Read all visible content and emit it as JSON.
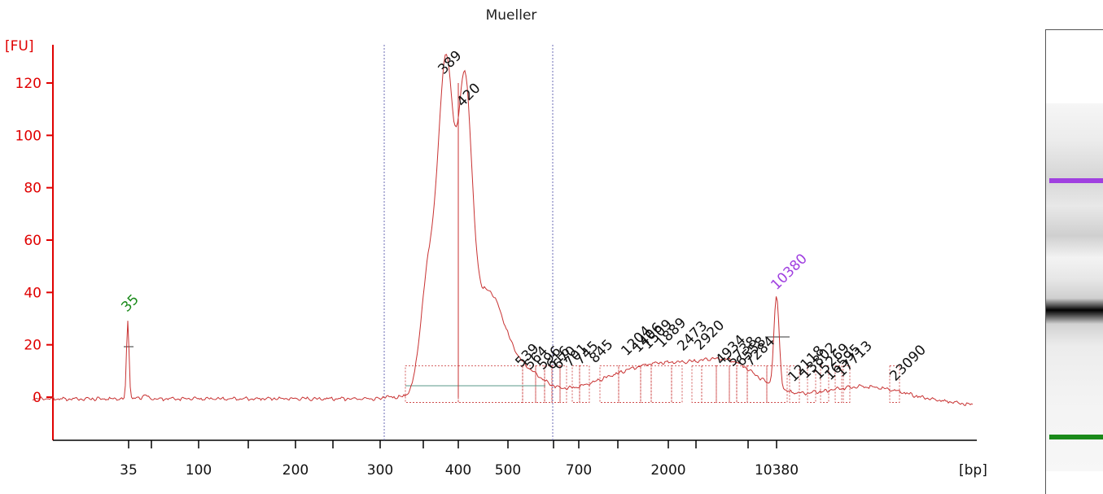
{
  "chart_data": {
    "type": "line",
    "title": "Mueller",
    "ylabel": "[FU]",
    "xlabel": "[bp]",
    "ylim": [
      -15,
      130
    ],
    "y_ticks": [
      0,
      20,
      40,
      60,
      80,
      100,
      120
    ],
    "x_ticks": [
      "35",
      "100",
      "200",
      "300",
      "400",
      "500",
      "700",
      "2000",
      "10380"
    ],
    "markers": [
      {
        "label": "35",
        "position_bp": 35,
        "height": 30,
        "color": "#1a8a1a"
      },
      {
        "label": "10380",
        "position_bp": 10380,
        "height": 38,
        "color": "#a040e0"
      }
    ],
    "peaks": [
      {
        "label": "389",
        "height": 122
      },
      {
        "label": "420",
        "height": 107
      },
      {
        "label": "539",
        "height": 10
      },
      {
        "label": "564",
        "height": 9
      },
      {
        "label": "596",
        "height": 8
      },
      {
        "label": "616",
        "height": 7
      },
      {
        "label": "670",
        "height": 7
      },
      {
        "label": "701",
        "height": 8
      },
      {
        "label": "745",
        "height": 8
      },
      {
        "label": "845",
        "height": 9
      },
      {
        "label": "1204",
        "height": 13
      },
      {
        "label": "1406",
        "height": 14
      },
      {
        "label": "1509",
        "height": 14
      },
      {
        "label": "1889",
        "height": 14
      },
      {
        "label": "2473",
        "height": 12
      },
      {
        "label": "2920",
        "height": 11
      },
      {
        "label": "4934",
        "height": 10
      },
      {
        "label": "5738",
        "height": 9
      },
      {
        "label": "6558",
        "height": 8
      },
      {
        "label": "7284",
        "height": 7
      },
      {
        "label": "12118",
        "height": 4
      },
      {
        "label": "13802",
        "height": 4
      },
      {
        "label": "15269",
        "height": 4
      },
      {
        "label": "16595",
        "height": 4
      },
      {
        "label": "17713",
        "height": 3
      },
      {
        "label": "23090",
        "height": 2
      }
    ],
    "region_bounds_bp": [
      "300",
      "700"
    ],
    "line_color": "#c83232",
    "axis_color": "#e00000",
    "grid": false
  },
  "gel": {
    "marker_colors": [
      "#a040e0",
      "#1a8a1a"
    ]
  }
}
